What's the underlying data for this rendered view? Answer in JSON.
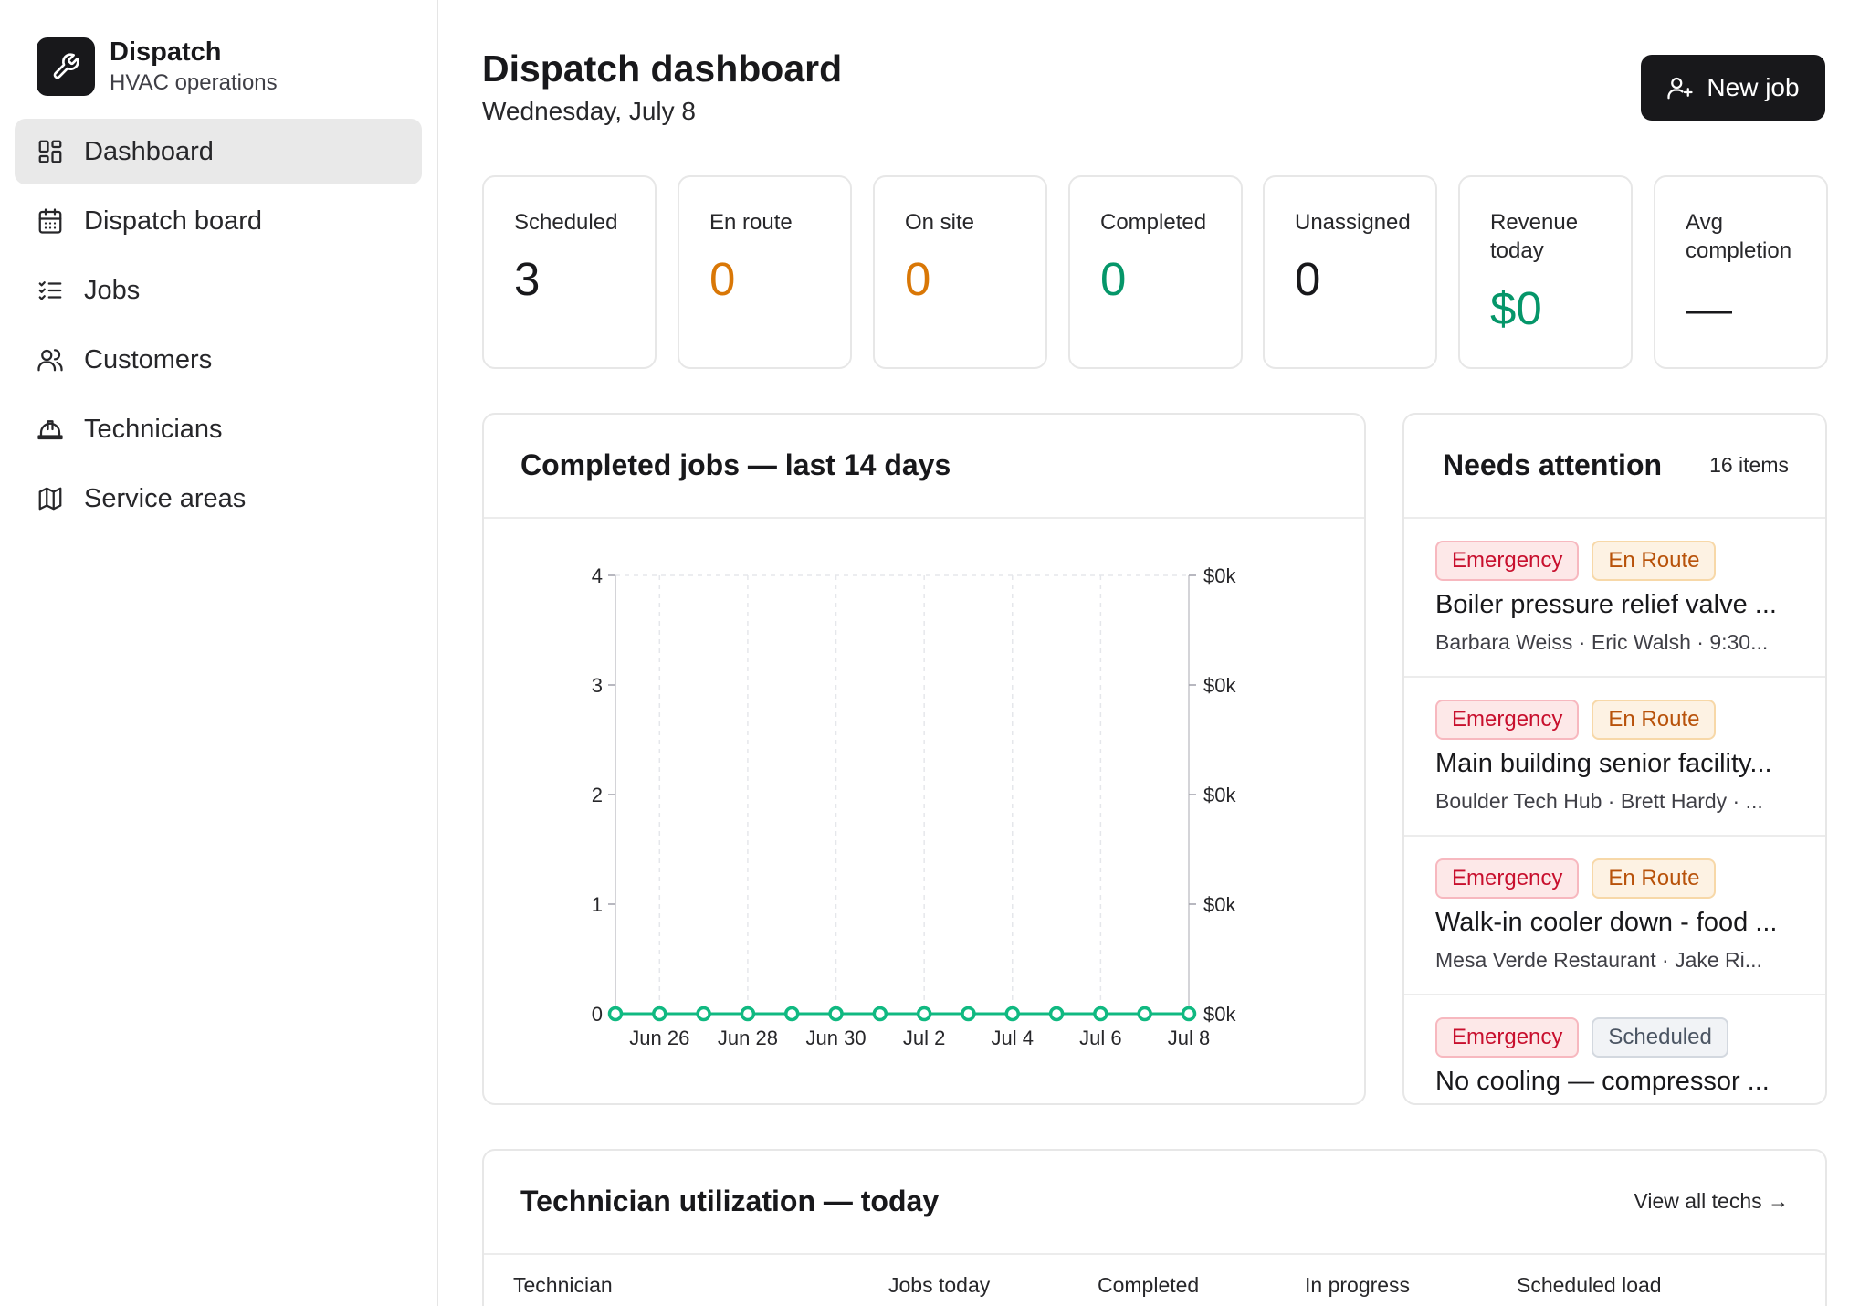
{
  "brand": {
    "name": "Dispatch",
    "subtitle": "HVAC operations",
    "logo_icon": "wrench-icon"
  },
  "sidebar": {
    "items": [
      {
        "label": "Dashboard",
        "icon": "dashboard-icon",
        "active": true
      },
      {
        "label": "Dispatch board",
        "icon": "calendar-icon",
        "active": false
      },
      {
        "label": "Jobs",
        "icon": "checklist-icon",
        "active": false
      },
      {
        "label": "Customers",
        "icon": "users-icon",
        "active": false
      },
      {
        "label": "Technicians",
        "icon": "hardhat-icon",
        "active": false
      },
      {
        "label": "Service areas",
        "icon": "map-icon",
        "active": false
      }
    ]
  },
  "header": {
    "title": "Dispatch dashboard",
    "date": "Wednesday, July 8",
    "new_job_label": "New job"
  },
  "stats": [
    {
      "label": "Scheduled",
      "value": "3",
      "color": "#18181b"
    },
    {
      "label": "En route",
      "value": "0",
      "color": "#d97706"
    },
    {
      "label": "On site",
      "value": "0",
      "color": "#d97706"
    },
    {
      "label": "Completed",
      "value": "0",
      "color": "#059669"
    },
    {
      "label": "Unassigned",
      "value": "0",
      "color": "#18181b"
    },
    {
      "label": "Revenue today",
      "value": "$0",
      "color": "#059669"
    },
    {
      "label": "Avg completion",
      "value": "—",
      "color": "#18181b"
    }
  ],
  "chart_card": {
    "title": "Completed jobs — last 14 days"
  },
  "chart_data": {
    "type": "line",
    "x": [
      "Jun 25",
      "Jun 26",
      "Jun 27",
      "Jun 28",
      "Jun 29",
      "Jun 30",
      "Jul 1",
      "Jul 2",
      "Jul 3",
      "Jul 4",
      "Jul 5",
      "Jul 6",
      "Jul 7",
      "Jul 8"
    ],
    "x_tick_labels": [
      "Jun 26",
      "Jun 28",
      "Jun 30",
      "Jul 2",
      "Jul 4",
      "Jul 6",
      "Jul 8"
    ],
    "series": [
      {
        "values": [
          0,
          0,
          0,
          0,
          0,
          0,
          0,
          0,
          0,
          0,
          0,
          0,
          0,
          0
        ],
        "color": "#10b981"
      }
    ],
    "ylim": [
      0,
      4
    ],
    "y_ticks": [
      "0",
      "1",
      "2",
      "3",
      "4"
    ],
    "y2_ticks": [
      "$0k",
      "$0k",
      "$0k",
      "$0k",
      "$0k"
    ],
    "grid": "vertical dashed",
    "title": "",
    "xlabel": "",
    "ylabel": ""
  },
  "attention": {
    "title": "Needs attention",
    "count": "16 items",
    "items": [
      {
        "badges": [
          "Emergency",
          "En Route"
        ],
        "title": "Boiler pressure relief valve ...",
        "meta": "Barbara Weiss · Eric Walsh · 9:30..."
      },
      {
        "badges": [
          "Emergency",
          "En Route"
        ],
        "title": "Main building senior facility...",
        "meta": "Boulder Tech Hub · Brett Hardy · ..."
      },
      {
        "badges": [
          "Emergency",
          "En Route"
        ],
        "title": "Walk-in cooler down - food ...",
        "meta": "Mesa Verde Restaurant · Jake Ri..."
      },
      {
        "badges": [
          "Emergency",
          "Scheduled"
        ],
        "title": "No cooling — compressor ...",
        "meta": ""
      }
    ]
  },
  "utilization": {
    "title": "Technician utilization — today",
    "view_all": "View all techs →",
    "columns": [
      "Technician",
      "Jobs today",
      "Completed",
      "In progress",
      "Scheduled load"
    ]
  }
}
